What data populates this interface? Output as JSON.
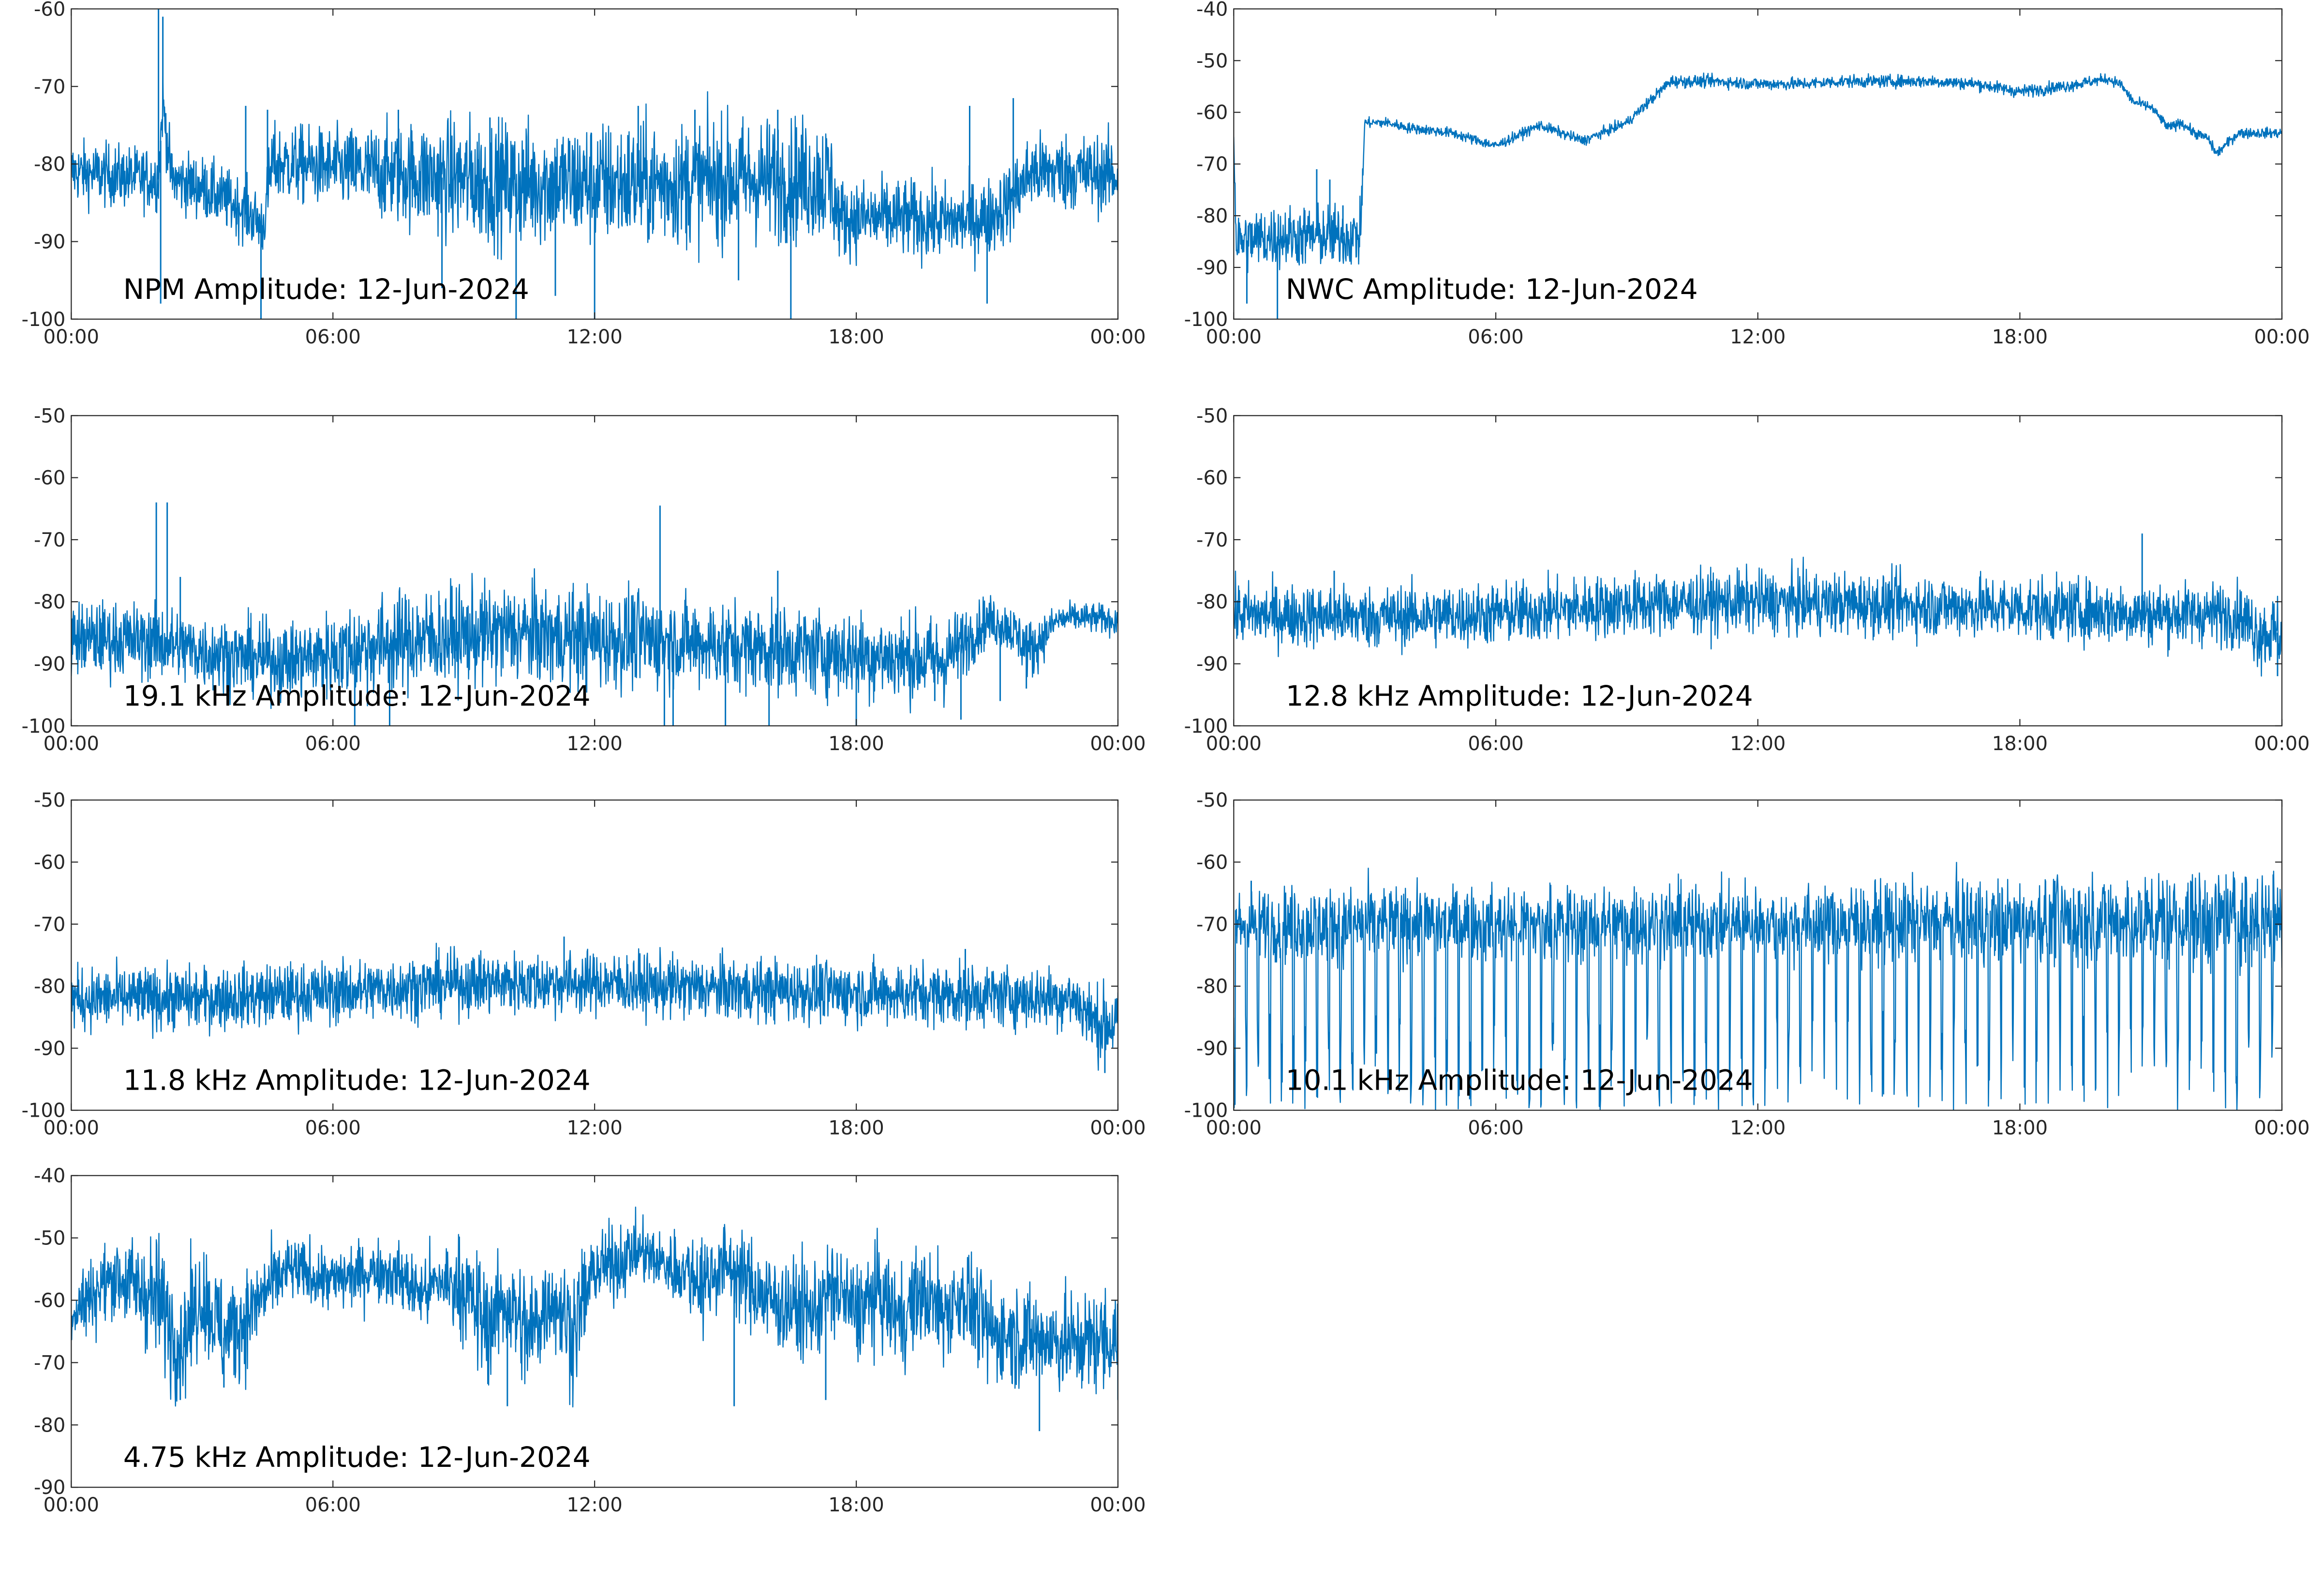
{
  "figure": {
    "background": "#ffffff",
    "trace_color": "#0072BD",
    "axis_color": "#262626"
  },
  "chart_data": [
    {
      "type": "line",
      "title": "NPM Amplitude: 12-Jun-2024",
      "xlabel": "",
      "ylabel": "",
      "x_ticks": [
        "00:00",
        "06:00",
        "12:00",
        "18:00",
        "00:00"
      ],
      "y_ticks": [
        -60,
        -70,
        -80,
        -90,
        -100
      ],
      "ylim": [
        -100,
        -60
      ],
      "grid": false,
      "series": [
        {
          "x_hours": [
            0,
            1,
            2,
            2.1,
            2.3,
            3,
            4,
            4.4,
            4.6,
            5,
            6,
            7,
            8,
            9,
            10,
            11,
            12,
            13,
            14,
            15,
            16,
            16.5,
            17,
            17.4,
            17.6,
            18,
            19,
            20,
            21,
            21.5,
            22,
            23,
            24
          ],
          "center_dB": [
            -81,
            -81.5,
            -82,
            -72,
            -82,
            -83,
            -86,
            -88,
            -80,
            -80,
            -80.5,
            -81,
            -81.5,
            -82,
            -82.5,
            -82.5,
            -82.5,
            -82.5,
            -82.5,
            -82,
            -82,
            -82,
            -82,
            -82,
            -87,
            -87,
            -87,
            -87.5,
            -87,
            -85,
            -81,
            -81,
            -81.5
          ],
          "noise_dB": [
            2,
            2,
            2,
            2,
            2,
            2,
            2,
            2,
            2.5,
            2.5,
            2.5,
            3,
            3.5,
            4,
            4,
            4,
            4,
            4,
            4,
            4,
            4,
            4,
            4,
            4,
            2.5,
            2.5,
            2.5,
            2.5,
            2.5,
            2.5,
            2.5,
            2.5,
            2.5
          ],
          "spikes": [
            {
              "x": 2.0,
              "y": -60
            },
            {
              "x": 2.05,
              "y": -98
            },
            {
              "x": 2.1,
              "y": -61
            },
            {
              "x": 4.0,
              "y": -72.5
            },
            {
              "x": 4.35,
              "y": -100
            },
            {
              "x": 4.5,
              "y": -73
            },
            {
              "x": 7.5,
              "y": -73
            },
            {
              "x": 8.5,
              "y": -96
            },
            {
              "x": 9.6,
              "y": -74
            },
            {
              "x": 10.2,
              "y": -100
            },
            {
              "x": 11.1,
              "y": -97
            },
            {
              "x": 12.0,
              "y": -100
            },
            {
              "x": 13.0,
              "y": -72.5
            },
            {
              "x": 14.3,
              "y": -73
            },
            {
              "x": 15.3,
              "y": -95
            },
            {
              "x": 16.2,
              "y": -73
            },
            {
              "x": 16.5,
              "y": -100
            },
            {
              "x": 20.6,
              "y": -72.5
            },
            {
              "x": 21.0,
              "y": -98
            },
            {
              "x": 21.6,
              "y": -71.5
            }
          ]
        }
      ]
    },
    {
      "type": "line",
      "title": "NWC Amplitude: 12-Jun-2024",
      "xlabel": "",
      "ylabel": "",
      "x_ticks": [
        "00:00",
        "06:00",
        "12:00",
        "18:00",
        "00:00"
      ],
      "y_ticks": [
        -40,
        -50,
        -60,
        -70,
        -80,
        -90,
        -100
      ],
      "ylim": [
        -100,
        -40
      ],
      "grid": false,
      "series": [
        {
          "x_hours": [
            0,
            0.05,
            0.1,
            1,
            2,
            2.9,
            3.0,
            3.5,
            4,
            5,
            6,
            7,
            8,
            9,
            10,
            11,
            12,
            13,
            14,
            15,
            16,
            17,
            18,
            19,
            20,
            20.3,
            20.6,
            21,
            21.4,
            21.7,
            22,
            22.3,
            22.5,
            23,
            24
          ],
          "center_dB": [
            -64,
            -84,
            -85,
            -84,
            -84,
            -84,
            -62,
            -62,
            -63,
            -64,
            -66.5,
            -62.5,
            -65.5,
            -62,
            -54,
            -54,
            -54.5,
            -54.5,
            -54,
            -54,
            -54,
            -54.5,
            -56,
            -55,
            -53.5,
            -54.5,
            -58,
            -59,
            -63,
            -62,
            -64,
            -65,
            -68,
            -64,
            -64
          ],
          "noise_dB": [
            1,
            3,
            3,
            3,
            3,
            3,
            0.5,
            0.5,
            0.5,
            0.5,
            0.5,
            0.5,
            0.5,
            0.5,
            0.6,
            0.6,
            0.6,
            0.6,
            0.6,
            0.6,
            0.6,
            0.6,
            0.6,
            0.6,
            0.5,
            0.5,
            0.5,
            0.5,
            0.5,
            0.5,
            0.5,
            0.5,
            0.5,
            0.5,
            0.5
          ],
          "spikes": [
            {
              "x": 0.3,
              "y": -97
            },
            {
              "x": 1.0,
              "y": -100
            },
            {
              "x": 1.9,
              "y": -71
            },
            {
              "x": 2.2,
              "y": -73
            },
            {
              "x": 2.5,
              "y": -78
            }
          ]
        }
      ]
    },
    {
      "type": "line",
      "title": "19.1 kHz Amplitude: 12-Jun-2024",
      "xlabel": "",
      "ylabel": "",
      "x_ticks": [
        "00:00",
        "06:00",
        "12:00",
        "18:00",
        "00:00"
      ],
      "y_ticks": [
        -50,
        -60,
        -70,
        -80,
        -90,
        -100
      ],
      "ylim": [
        -100,
        -50
      ],
      "grid": false,
      "series": [
        {
          "x_hours": [
            0,
            1,
            2,
            3,
            4,
            5,
            6,
            7,
            8,
            9,
            10,
            11,
            12,
            13,
            14,
            15,
            16,
            17,
            18,
            19,
            20,
            21,
            21.5,
            22,
            22.6,
            23,
            24
          ],
          "center_dB": [
            -86,
            -86,
            -86.5,
            -88,
            -89,
            -89.5,
            -88.5,
            -87,
            -86,
            -85.5,
            -85,
            -85.5,
            -86,
            -86,
            -86.5,
            -87,
            -87.5,
            -88,
            -88.5,
            -89,
            -89.5,
            -83,
            -84,
            -88,
            -83,
            -82.5,
            -83
          ],
          "noise_dB": [
            3,
            3,
            3,
            3,
            3,
            3,
            3.5,
            4,
            4,
            4,
            4,
            4,
            4,
            4,
            3.5,
            3.5,
            3.5,
            3.5,
            3.5,
            3.5,
            3.5,
            2,
            2,
            2.5,
            1.2,
            1.2,
            1.2
          ],
          "spikes": [
            {
              "x": 1.95,
              "y": -64
            },
            {
              "x": 2.2,
              "y": -64
            },
            {
              "x": 2.5,
              "y": -76
            },
            {
              "x": 6.5,
              "y": -100
            },
            {
              "x": 7.3,
              "y": -100
            },
            {
              "x": 13.5,
              "y": -64.5
            },
            {
              "x": 13.6,
              "y": -100
            },
            {
              "x": 13.8,
              "y": -100
            },
            {
              "x": 15.0,
              "y": -100
            },
            {
              "x": 16.0,
              "y": -100
            },
            {
              "x": 16.2,
              "y": -75
            },
            {
              "x": 18.0,
              "y": -100
            },
            {
              "x": 19.8,
              "y": -96
            },
            {
              "x": 20.4,
              "y": -99
            },
            {
              "x": 21.3,
              "y": -96
            },
            {
              "x": 21.9,
              "y": -94
            }
          ]
        }
      ]
    },
    {
      "type": "line",
      "title": "12.8 kHz Amplitude: 12-Jun-2024",
      "xlabel": "",
      "ylabel": "",
      "x_ticks": [
        "00:00",
        "06:00",
        "12:00",
        "18:00",
        "00:00"
      ],
      "y_ticks": [
        -50,
        -60,
        -70,
        -80,
        -90,
        -100
      ],
      "ylim": [
        -100,
        -50
      ],
      "grid": false,
      "series": [
        {
          "x_hours": [
            0,
            3,
            6,
            9,
            12,
            15,
            18,
            21,
            23,
            23.5,
            24
          ],
          "center_dB": [
            -82,
            -82.5,
            -82,
            -80.5,
            -80,
            -80.5,
            -81,
            -82,
            -82,
            -85,
            -85
          ],
          "noise_dB": [
            2.5,
            2.5,
            2.5,
            2.5,
            2.5,
            2.5,
            2.5,
            2.5,
            2.5,
            3,
            3
          ],
          "spikes": [
            {
              "x": 20.8,
              "y": -69
            },
            {
              "x": 2.3,
              "y": -75
            },
            {
              "x": 23.9,
              "y": -92
            }
          ]
        }
      ]
    },
    {
      "type": "line",
      "title": "11.8 kHz Amplitude: 12-Jun-2024",
      "xlabel": "",
      "ylabel": "",
      "x_ticks": [
        "00:00",
        "06:00",
        "12:00",
        "18:00",
        "00:00"
      ],
      "y_ticks": [
        -50,
        -60,
        -70,
        -80,
        -90,
        -100
      ],
      "ylim": [
        -100,
        -50
      ],
      "grid": false,
      "series": [
        {
          "x_hours": [
            0,
            3,
            6,
            9,
            12,
            15,
            18,
            21,
            23,
            23.5,
            24
          ],
          "center_dB": [
            -82,
            -82,
            -81,
            -79.5,
            -79.5,
            -80.5,
            -81,
            -81.5,
            -82,
            -86,
            -86
          ],
          "noise_dB": [
            2.5,
            2.5,
            2.5,
            2.5,
            2.5,
            2.5,
            2.5,
            2.5,
            2.5,
            3,
            3
          ],
          "spikes": [
            {
              "x": 11.3,
              "y": -72
            },
            {
              "x": 20.5,
              "y": -74
            },
            {
              "x": 23.7,
              "y": -94
            }
          ]
        }
      ]
    },
    {
      "type": "line",
      "title": "10.1 kHz Amplitude: 12-Jun-2024",
      "xlabel": "",
      "ylabel": "",
      "x_ticks": [
        "00:00",
        "06:00",
        "12:00",
        "18:00",
        "00:00"
      ],
      "y_ticks": [
        -50,
        -60,
        -70,
        -80,
        -90,
        -100
      ],
      "ylim": [
        -100,
        -50
      ],
      "grid": false,
      "series": [
        {
          "x_hours": [
            0,
            6,
            12,
            18,
            24
          ],
          "center_dB": [
            -70,
            -70,
            -70,
            -69.5,
            -69
          ],
          "noise_dB": [
            3,
            3,
            3,
            3.5,
            4
          ],
          "dip_period_hours": 0.27,
          "dip_depth_dB": [
            -100,
            -84
          ],
          "spikes": [
            {
              "x": 0.4,
              "y": -63
            },
            {
              "x": 18.8,
              "y": -63
            },
            {
              "x": 23.8,
              "y": -62
            }
          ]
        }
      ]
    },
    {
      "type": "line",
      "title": "4.75 kHz Amplitude: 12-Jun-2024",
      "xlabel": "",
      "ylabel": "",
      "x_ticks": [
        "00:00",
        "06:00",
        "12:00",
        "18:00",
        "00:00"
      ],
      "y_ticks": [
        -40,
        -50,
        -60,
        -70,
        -80,
        -90
      ],
      "ylim": [
        -90,
        -40
      ],
      "grid": false,
      "series": [
        {
          "x_hours": [
            0,
            1,
            2,
            2.5,
            3,
            3.5,
            4,
            4.5,
            5,
            6,
            7,
            7.5,
            8,
            8.5,
            9,
            9.5,
            10,
            10.5,
            11,
            11.5,
            12,
            12.5,
            13,
            13.5,
            14,
            14.5,
            15,
            16,
            17,
            17.5,
            18,
            18.5,
            19,
            19.5,
            20,
            20.5,
            21,
            22,
            23,
            24
          ],
          "center_dB": [
            -62,
            -56,
            -60,
            -67,
            -59,
            -66,
            -63,
            -58,
            -55,
            -57,
            -55,
            -56,
            -59,
            -57,
            -58,
            -64,
            -60,
            -66,
            -59,
            -65,
            -55,
            -54,
            -52,
            -54,
            -55,
            -57,
            -54,
            -60,
            -62,
            -58,
            -62,
            -59,
            -63,
            -59,
            -62,
            -59,
            -65,
            -66,
            -67,
            -66
          ],
          "noise_dB": [
            3,
            3,
            5,
            5,
            4,
            5,
            4,
            3,
            2.5,
            2.5,
            2.5,
            2.5,
            3,
            3,
            4,
            5,
            4,
            5,
            4,
            5,
            3,
            3,
            2.5,
            2.5,
            3,
            4,
            3,
            4,
            4,
            4,
            4,
            4,
            4,
            4,
            4,
            4,
            4,
            4,
            4,
            4
          ],
          "spikes": [
            {
              "x": 2.5,
              "y": -76
            },
            {
              "x": 3.5,
              "y": -74
            },
            {
              "x": 10.0,
              "y": -77
            },
            {
              "x": 15.2,
              "y": -77
            },
            {
              "x": 17.3,
              "y": -76
            },
            {
              "x": 22.2,
              "y": -81
            },
            {
              "x": 24.0,
              "y": -76
            }
          ]
        }
      ]
    }
  ]
}
